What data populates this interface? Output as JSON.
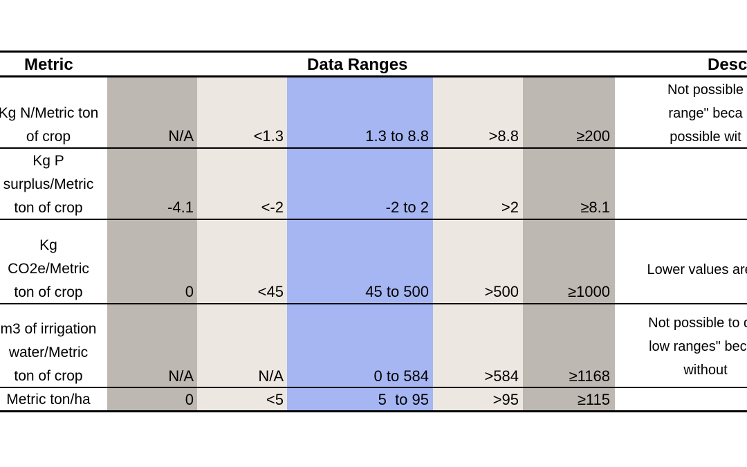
{
  "headers": {
    "metric": "Metric",
    "ranges": "Data Ranges",
    "description": "Desc"
  },
  "rows": [
    {
      "metric": [
        "Kg N/Metric ton",
        "of crop"
      ],
      "values": [
        "N/A",
        "<1.3",
        "1.3 to 8.8",
        ">8.8",
        "≥200"
      ],
      "description": [
        "Not possible",
        "range\" beca",
        "possible wit"
      ]
    },
    {
      "metric": [
        "Kg P",
        "surplus/Metric",
        "ton of crop"
      ],
      "values": [
        "-4.1",
        "<-2",
        "-2 to 2",
        ">2",
        "≥8.1"
      ],
      "description": []
    },
    {
      "metric": [
        "Kg",
        "CO2e/Metric",
        "ton of crop"
      ],
      "values": [
        "0",
        "<45",
        "45 to 500",
        ">500",
        "≥1000"
      ],
      "description": [
        "Lower values are d"
      ]
    },
    {
      "metric": [
        "m3 of irrigation",
        "water/Metric",
        "ton of crop"
      ],
      "values": [
        "N/A",
        "N/A",
        "0 to 584",
        ">584",
        "≥1168"
      ],
      "description": [
        "Not possible to det",
        "low ranges\" becau",
        "without"
      ]
    },
    {
      "metric": [
        "Metric ton/ha"
      ],
      "values": [
        "0",
        "<5",
        "5  to 95",
        ">95",
        "≥115"
      ],
      "description": []
    }
  ],
  "colors": {
    "gray": "#bdb8b1",
    "beige": "#ede7e2",
    "blue": "#a6b6f2"
  }
}
